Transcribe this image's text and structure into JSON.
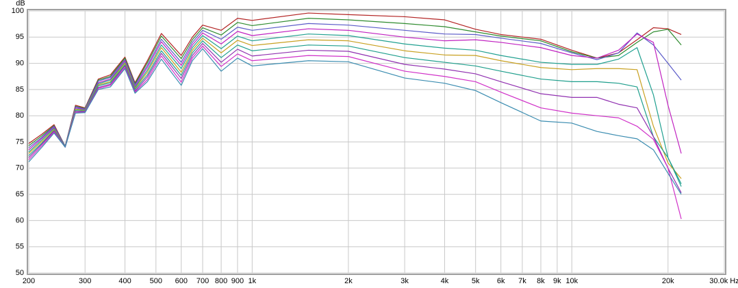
{
  "chart_data": {
    "type": "line",
    "y_label": "dB",
    "log_x": true,
    "grid": true,
    "xlim": [
      200,
      30000
    ],
    "ylim": [
      50,
      100
    ],
    "xticks": [
      200,
      300,
      400,
      500,
      600,
      700,
      800,
      900,
      {
        "value": 1000,
        "label": "1k"
      },
      {
        "value": 2000,
        "label": "2k"
      },
      {
        "value": 3000,
        "label": "3k"
      },
      {
        "value": 4000,
        "label": "4k"
      },
      {
        "value": 5000,
        "label": "5k"
      },
      {
        "value": 6000,
        "label": "6k"
      },
      {
        "value": 7000,
        "label": "7k"
      },
      {
        "value": 8000,
        "label": "8k"
      },
      {
        "value": 9000,
        "label": "9k"
      },
      {
        "value": 10000,
        "label": "10k"
      },
      {
        "value": 20000,
        "label": "20k"
      },
      {
        "value": 30000,
        "label": "30.0k Hz"
      }
    ],
    "yticks": [
      50,
      55,
      60,
      65,
      70,
      75,
      80,
      85,
      90,
      95,
      100
    ],
    "x": [
      200,
      220,
      240,
      260,
      280,
      300,
      330,
      360,
      400,
      430,
      470,
      520,
      600,
      650,
      700,
      800,
      900,
      1000,
      1500,
      2000,
      3000,
      4000,
      5000,
      6000,
      8000,
      10000,
      12000,
      14000,
      16000,
      18000,
      20000,
      22000
    ],
    "series": [
      {
        "color": "#b22222",
        "values": [
          74.7,
          76.5,
          78.3,
          74.2,
          82,
          81.5,
          87,
          87.8,
          91.2,
          86.3,
          90.5,
          95.7,
          91.5,
          95,
          97.3,
          96.3,
          98.6,
          98.2,
          99.6,
          99.3,
          98.9,
          98.3,
          96.5,
          95.5,
          94.6,
          92.5,
          91,
          92,
          94.5,
          96.8,
          96.6,
          95.5
        ]
      },
      {
        "color": "#2e8b2e",
        "values": [
          74.3,
          76.2,
          78.1,
          74.2,
          81.8,
          81.4,
          86.8,
          87.5,
          91,
          86.1,
          90.1,
          95.2,
          90.9,
          94.5,
          96.8,
          95.4,
          97.8,
          97.2,
          98.6,
          98.3,
          97.6,
          97,
          96,
          95.2,
          94.3,
          92.2,
          91,
          91.5,
          94,
          96,
          96.5,
          93.5
        ]
      },
      {
        "color": "#5a5ac8",
        "values": [
          73.9,
          75.9,
          78,
          74.2,
          81.7,
          81.3,
          86.6,
          87.3,
          90.7,
          85.9,
          89.6,
          94.6,
          90.2,
          94,
          96.3,
          94.6,
          96.9,
          96.3,
          97.6,
          97.3,
          96.3,
          95.6,
          95.5,
          94.8,
          93.8,
          92,
          90.7,
          92,
          95.8,
          93.5,
          90,
          86.8
        ]
      },
      {
        "color": "#c020c0",
        "values": [
          73.5,
          75.7,
          77.8,
          74.1,
          81.5,
          81.2,
          86.3,
          87,
          90.5,
          85.6,
          89.2,
          94.1,
          89.6,
          93.5,
          95.8,
          93.7,
          96.1,
          95.3,
          96.6,
          96.3,
          95,
          94.3,
          94.5,
          94,
          93,
          91.5,
          91,
          92.5,
          95.6,
          94,
          82,
          72.8
        ]
      },
      {
        "color": "#20a090",
        "values": [
          73.1,
          75.4,
          77.6,
          74.1,
          81.3,
          81.1,
          86.1,
          86.8,
          90.2,
          85.4,
          88.7,
          93.5,
          89,
          93,
          95.3,
          92.8,
          95.2,
          94.3,
          95.6,
          95.3,
          93.7,
          92.9,
          92.5,
          91.5,
          90.2,
          89.8,
          89.8,
          90.8,
          93,
          84,
          72,
          66.5
        ]
      },
      {
        "color": "#c8a020",
        "values": [
          72.8,
          75.1,
          77.4,
          74.1,
          81.2,
          81,
          85.9,
          86.5,
          90,
          85.2,
          88.3,
          93,
          88.3,
          92.5,
          94.8,
          92,
          94.4,
          93.4,
          94.5,
          94.3,
          92.4,
          91.6,
          91.5,
          90.5,
          89.2,
          88.8,
          89,
          89,
          88.8,
          78,
          71,
          68
        ]
      },
      {
        "color": "#1e9e8c",
        "values": [
          72.4,
          74.8,
          77.2,
          74.1,
          81,
          80.9,
          85.7,
          86.3,
          89.7,
          85,
          87.8,
          92.4,
          87.7,
          92,
          94.3,
          91.1,
          93.5,
          92.4,
          93.5,
          93.3,
          91.1,
          90.2,
          89.5,
          88.5,
          87,
          86.5,
          86.5,
          86.2,
          85.5,
          76,
          72,
          67
        ]
      },
      {
        "color": "#9030b0",
        "values": [
          72,
          74.6,
          77.1,
          74,
          80.8,
          80.8,
          85.4,
          86,
          89.5,
          84.7,
          87.4,
          91.9,
          87.1,
          91.5,
          93.8,
          90.2,
          92.7,
          91.4,
          92.5,
          92.3,
          89.8,
          88.9,
          88,
          86.5,
          84.2,
          83.5,
          83.5,
          82.2,
          81.5,
          76,
          70,
          65.3
        ]
      },
      {
        "color": "#d030c8",
        "values": [
          71.6,
          74.3,
          76.9,
          74,
          80.7,
          80.7,
          85.2,
          85.8,
          89.2,
          84.5,
          86.9,
          91.4,
          86.4,
          91,
          93.3,
          89.4,
          91.8,
          90.5,
          91.5,
          91.3,
          88.5,
          87.5,
          86.5,
          84.5,
          81.5,
          80.5,
          80,
          79.6,
          78,
          75.5,
          70,
          60.3
        ]
      },
      {
        "color": "#3a8cb0",
        "values": [
          71.2,
          74,
          76.7,
          74,
          80.5,
          80.6,
          85,
          85.5,
          89,
          84.3,
          86.5,
          90.8,
          85.8,
          90.5,
          92.8,
          88.5,
          91,
          89.5,
          90.5,
          90.3,
          87.2,
          86.2,
          84.8,
          82.5,
          79,
          78.6,
          77,
          76.2,
          75.6,
          73.5,
          69,
          65
        ]
      }
    ]
  }
}
